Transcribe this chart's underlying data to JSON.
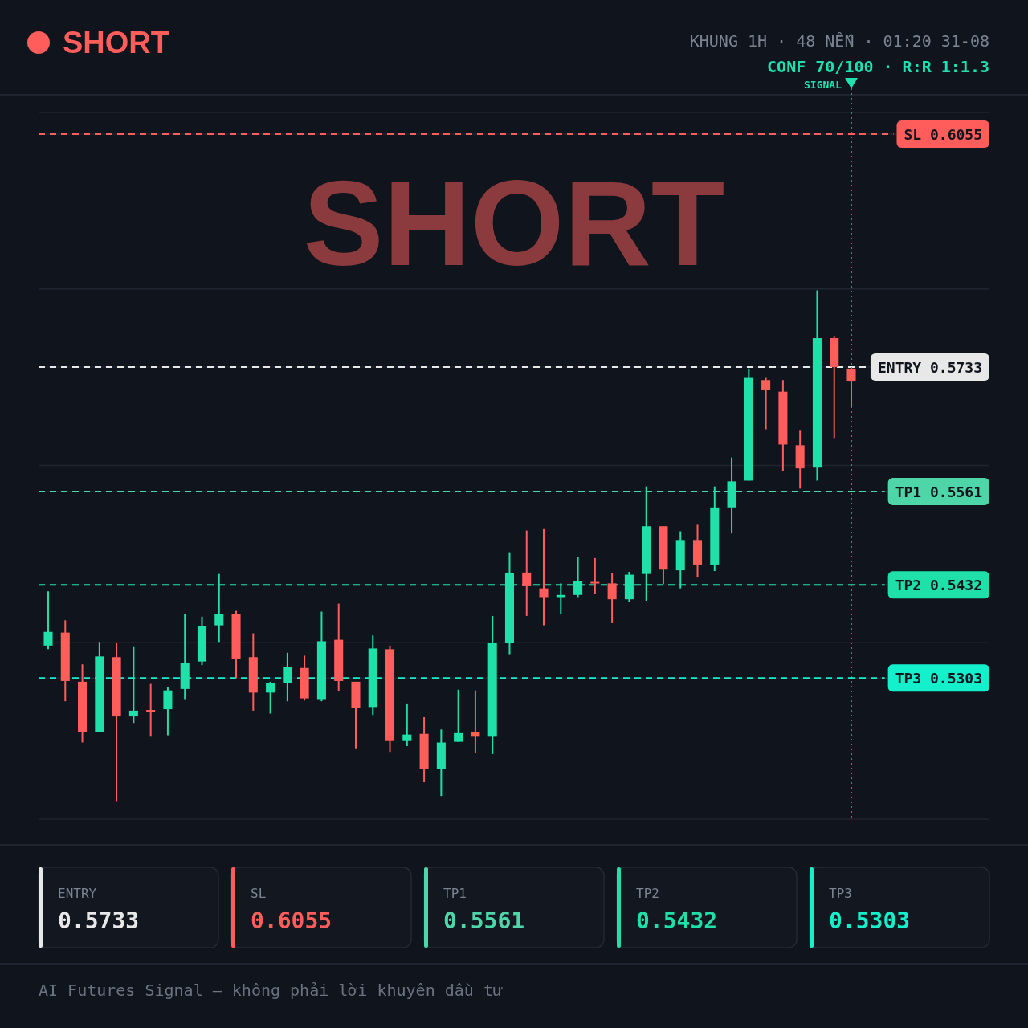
{
  "chart_data": {
    "type": "candlestick",
    "title": "SHORT",
    "subtitle": "KHUNG 1H · 48 NẾN · 01:20 31-08",
    "annotations": [
      "CONF 70/100 · R:R 1:1.3",
      "SHORT",
      "AI Futures Signal — không phải lời khuyên đầu tư",
      "SIGNAL",
      "0.5733",
      "0.6055",
      "0.5561",
      "0.5432",
      "0.5303"
    ],
    "categories": [
      null,
      null,
      null,
      null,
      null,
      null,
      null,
      null,
      null,
      null,
      null,
      null,
      null,
      null,
      null,
      null,
      null,
      null,
      null,
      null,
      null,
      null,
      null,
      null,
      null,
      null,
      null,
      null,
      null,
      null,
      null,
      null,
      null,
      null,
      null,
      null,
      null,
      null,
      null,
      null,
      null,
      null,
      null,
      null,
      null,
      null,
      null,
      null
    ],
    "ohlc": [
      [
        0.5348,
        0.5423,
        0.5343,
        0.5367
      ],
      [
        0.5366,
        0.5383,
        0.5271,
        0.5299
      ],
      [
        0.5298,
        0.5322,
        0.5214,
        0.5229
      ],
      [
        0.5229,
        0.5353,
        0.5229,
        0.5333
      ],
      [
        0.5332,
        0.5352,
        0.5133,
        0.525
      ],
      [
        0.525,
        0.5347,
        0.5241,
        0.5258
      ],
      [
        0.5259,
        0.5295,
        0.5222,
        0.5256
      ],
      [
        0.526,
        0.5291,
        0.5224,
        0.5286
      ],
      [
        0.5288,
        0.5392,
        0.5274,
        0.5324
      ],
      [
        0.5326,
        0.5388,
        0.5321,
        0.5375
      ],
      [
        0.5376,
        0.5447,
        0.5353,
        0.5392
      ],
      [
        0.5392,
        0.5396,
        0.5303,
        0.533
      ],
      [
        0.5332,
        0.5365,
        0.5258,
        0.5283
      ],
      [
        0.5283,
        0.5298,
        0.5254,
        0.5296
      ],
      [
        0.5296,
        0.5338,
        0.5271,
        0.5318
      ],
      [
        0.5317,
        0.5334,
        0.5272,
        0.5275
      ],
      [
        0.5274,
        0.5395,
        0.5271,
        0.5354
      ],
      [
        0.5356,
        0.5406,
        0.5285,
        0.5299
      ],
      [
        0.5298,
        0.5298,
        0.5206,
        0.5262
      ],
      [
        0.5263,
        0.5362,
        0.5252,
        0.5344
      ],
      [
        0.5343,
        0.5348,
        0.5201,
        0.5216
      ],
      [
        0.5216,
        0.5268,
        0.5209,
        0.5225
      ],
      [
        0.5226,
        0.5249,
        0.5159,
        0.5177
      ],
      [
        0.5177,
        0.5232,
        0.514,
        0.5214
      ],
      [
        0.5215,
        0.5287,
        0.5215,
        0.5227
      ],
      [
        0.5229,
        0.5286,
        0.52,
        0.5222
      ],
      [
        0.5222,
        0.5389,
        0.5198,
        0.5352
      ],
      [
        0.5352,
        0.5477,
        0.5336,
        0.5448
      ],
      [
        0.5449,
        0.5507,
        0.5389,
        0.543
      ],
      [
        0.5427,
        0.5509,
        0.5376,
        0.5415
      ],
      [
        0.5415,
        0.5434,
        0.5391,
        0.5418
      ],
      [
        0.5418,
        0.547,
        0.5415,
        0.5437
      ],
      [
        0.5436,
        0.5469,
        0.5419,
        0.5434
      ],
      [
        0.5434,
        0.5448,
        0.5379,
        0.5412
      ],
      [
        0.5412,
        0.545,
        0.5408,
        0.5446
      ],
      [
        0.5447,
        0.5568,
        0.541,
        0.5513
      ],
      [
        0.5513,
        0.5513,
        0.5433,
        0.5453
      ],
      [
        0.5452,
        0.5506,
        0.5427,
        0.5494
      ],
      [
        0.5494,
        0.5515,
        0.5442,
        0.546
      ],
      [
        0.546,
        0.5568,
        0.5451,
        0.5539
      ],
      [
        0.5539,
        0.5608,
        0.5503,
        0.5575
      ],
      [
        0.5576,
        0.5731,
        0.5576,
        0.5718
      ],
      [
        0.5715,
        0.5718,
        0.5647,
        0.5701
      ],
      [
        0.5699,
        0.5715,
        0.5589,
        0.5626
      ],
      [
        0.5625,
        0.5645,
        0.5565,
        0.5593
      ],
      [
        0.5594,
        0.5839,
        0.5576,
        0.5773
      ],
      [
        0.5773,
        0.5776,
        0.5635,
        0.5733
      ],
      [
        0.5731,
        0.5733,
        0.5678,
        0.5713
      ]
    ],
    "colors": [
      "#1fe0a8",
      "#ff5c5c",
      "#ff5c5c",
      "#1fe0a8",
      "#ff5c5c",
      "#1fe0a8",
      "#ff5c5c",
      "#1fe0a8",
      "#1fe0a8",
      "#1fe0a8",
      "#1fe0a8",
      "#ff5c5c",
      "#ff5c5c",
      "#1fe0a8",
      "#1fe0a8",
      "#ff5c5c",
      "#1fe0a8",
      "#ff5c5c",
      "#ff5c5c",
      "#1fe0a8",
      "#ff5c5c",
      "#1fe0a8",
      "#ff5c5c",
      "#1fe0a8",
      "#1fe0a8",
      "#ff5c5c",
      "#1fe0a8",
      "#1fe0a8",
      "#ff5c5c",
      "#ff5c5c",
      "#1fe0a8",
      "#1fe0a8",
      "#ff5c5c",
      "#ff5c5c",
      "#1fe0a8",
      "#1fe0a8",
      "#ff5c5c",
      "#1fe0a8",
      "#ff5c5c",
      "#1fe0a8",
      "#1fe0a8",
      "#1fe0a8",
      "#ff5c5c",
      "#ff5c5c",
      "#ff5c5c",
      "#1fe0a8",
      "#ff5c5c",
      "#ff5c5c"
    ],
    "ylim": [
      0.5108,
      0.6085
    ],
    "yticks": [
      {
        "value": 0.5108,
        "label": null
      },
      0.5303,
      {
        "value": 0.5352,
        "label": null
      },
      0.5432,
      0.5561,
      {
        "value": 0.5597,
        "label": null
      },
      0.5733,
      {
        "value": 0.5841,
        "label": null
      },
      0.6055,
      {
        "value": 0.6085,
        "label": null
      }
    ],
    "grid": "y",
    "tick_labels": "y",
    "ref_lines": [
      {
        "axis": "y",
        "value": 0.5733,
        "label": "ENTRY",
        "color": "#e8e8e8",
        "line_style": "dashed"
      },
      {
        "axis": "y",
        "value": 0.6055,
        "label": "SL",
        "color": "#ff5c5c",
        "line_style": "dashed"
      },
      {
        "axis": "y",
        "value": 0.5561,
        "label": "TP1",
        "color": "#4fd6a8",
        "line_style": "dashed"
      },
      {
        "axis": "y",
        "value": 0.5432,
        "label": "TP2",
        "color": "#1fe0a8",
        "line_style": "dashed"
      },
      {
        "axis": "y",
        "value": 0.5303,
        "label": "TP3",
        "color": "#14f0cc",
        "line_style": "dashed"
      }
    ]
  }
}
